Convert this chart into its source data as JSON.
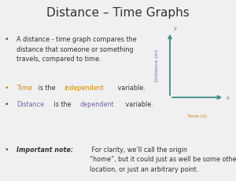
{
  "title": "Distance – Time Graphs",
  "title_fontsize": 11,
  "title_color": "#333333",
  "bg_color": "#f0f0f0",
  "bullet1_line1": "A distance - time graph compares the",
  "bullet1_line2": "distance that someone or something",
  "bullet1_line3": "travels, compared to time.",
  "bullet2_parts": [
    [
      "Time",
      "#d4860a"
    ],
    [
      " is the ",
      "#333333"
    ],
    [
      "independent",
      "#d4860a"
    ],
    [
      " variable.",
      "#333333"
    ]
  ],
  "bullet3_parts": [
    [
      "Distance",
      "#7b5ea7"
    ],
    [
      " is the ",
      "#333333"
    ],
    [
      "dependent",
      "#7b5ea7"
    ],
    [
      " variable.",
      "#333333"
    ]
  ],
  "bullet4_bold": "Important note:",
  "bullet4_rest": " For clarity, we’ll call the origin\n“home”, but it could just as well be some other\nlocation, or just an arbitrary point.",
  "axis_color": "#3d8b8b",
  "axis_label_time": "Time (s)",
  "axis_label_distance": "Distance (m)",
  "axis_x_label_color": "#c8860a",
  "axis_y_label_color": "#7b5ea7",
  "body_fontsize": 5.8,
  "bullet_color": "#555555",
  "text_color": "#333333"
}
